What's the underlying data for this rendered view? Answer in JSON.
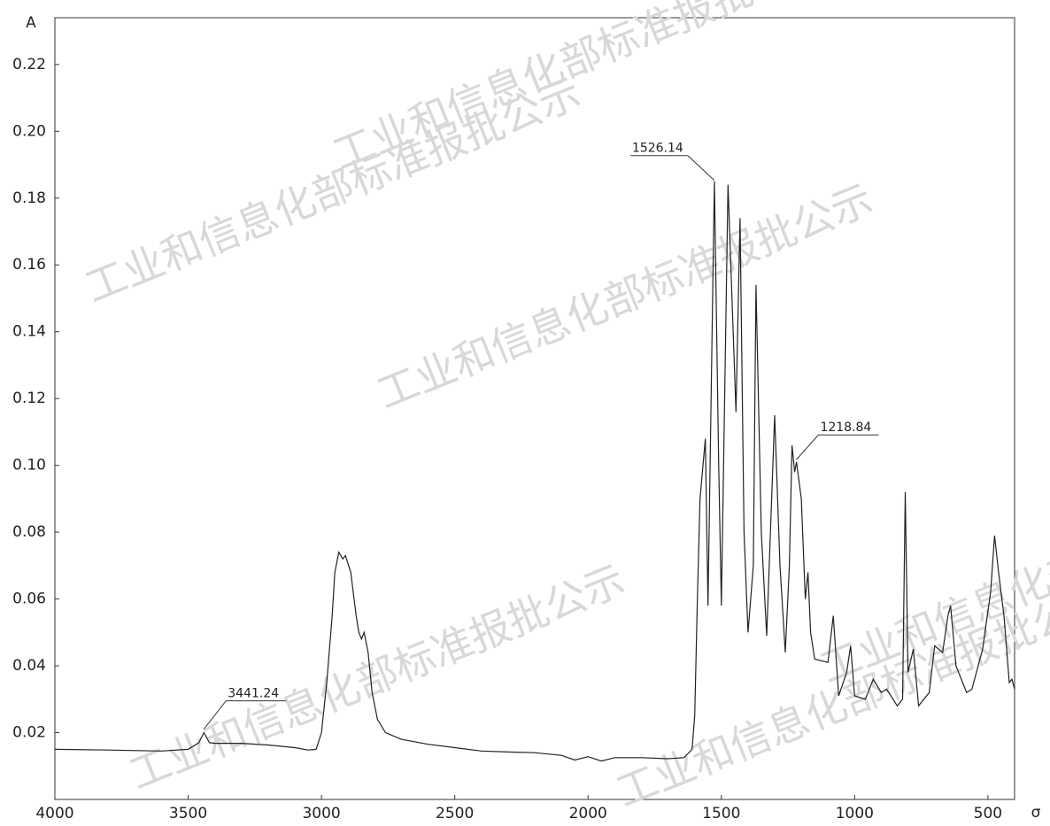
{
  "chart_data": {
    "type": "line",
    "watermark": "工业和信息化部标准报批公示",
    "y_label": "A",
    "x_label": "σ",
    "xlim": [
      4000,
      400
    ],
    "ylim": [
      0,
      0.234
    ],
    "xticks": [
      4000,
      3500,
      3000,
      2500,
      2000,
      1500,
      1000,
      500
    ],
    "yticks": [
      0.02,
      0.04,
      0.06,
      0.08,
      {
        "value": 0.1,
        "label": "0.10"
      },
      0.12,
      0.14,
      0.16,
      0.18,
      {
        "value": 0.2,
        "label": "0.20"
      },
      0.22
    ],
    "color": "#222222",
    "peak_labels": [
      3441.24,
      1526.14,
      1218.84
    ],
    "x": [
      4000,
      3800,
      3600,
      3500,
      3460,
      3441,
      3420,
      3400,
      3300,
      3200,
      3100,
      3050,
      3020,
      3000,
      2980,
      2960,
      2950,
      2935,
      2920,
      2910,
      2890,
      2870,
      2860,
      2850,
      2840,
      2825,
      2810,
      2790,
      2760,
      2700,
      2600,
      2500,
      2400,
      2300,
      2200,
      2100,
      2050,
      2000,
      1950,
      1900,
      1800,
      1700,
      1640,
      1610,
      1600,
      1590,
      1580,
      1560,
      1550,
      1526,
      1510,
      1500,
      1475,
      1460,
      1445,
      1430,
      1415,
      1400,
      1380,
      1370,
      1350,
      1330,
      1300,
      1280,
      1260,
      1245,
      1235,
      1225,
      1218,
      1200,
      1185,
      1175,
      1165,
      1150,
      1100,
      1080,
      1060,
      1030,
      1015,
      1000,
      960,
      930,
      900,
      880,
      840,
      820,
      810,
      800,
      780,
      760,
      720,
      700,
      670,
      650,
      640,
      620,
      580,
      560,
      520,
      490,
      475,
      460,
      440,
      420,
      410,
      400
    ],
    "values": [
      0.015,
      0.0148,
      0.0145,
      0.015,
      0.017,
      0.02,
      0.017,
      0.0168,
      0.0168,
      0.0163,
      0.0155,
      0.0148,
      0.015,
      0.02,
      0.035,
      0.055,
      0.068,
      0.074,
      0.072,
      0.073,
      0.068,
      0.055,
      0.05,
      0.048,
      0.05,
      0.044,
      0.032,
      0.024,
      0.02,
      0.018,
      0.0165,
      0.0155,
      0.0145,
      0.0142,
      0.014,
      0.0132,
      0.0118,
      0.0128,
      0.0115,
      0.0125,
      0.0125,
      0.0122,
      0.0125,
      0.015,
      0.025,
      0.06,
      0.09,
      0.108,
      0.058,
      0.185,
      0.1,
      0.058,
      0.184,
      0.15,
      0.116,
      0.174,
      0.08,
      0.05,
      0.07,
      0.154,
      0.08,
      0.049,
      0.115,
      0.07,
      0.044,
      0.07,
      0.106,
      0.098,
      0.101,
      0.09,
      0.06,
      0.068,
      0.05,
      0.042,
      0.041,
      0.055,
      0.031,
      0.038,
      0.046,
      0.031,
      0.03,
      0.036,
      0.032,
      0.033,
      0.028,
      0.03,
      0.092,
      0.038,
      0.045,
      0.028,
      0.032,
      0.046,
      0.044,
      0.055,
      0.058,
      0.04,
      0.032,
      0.033,
      0.045,
      0.062,
      0.079,
      0.068,
      0.055,
      0.035,
      0.036,
      0.033
    ]
  }
}
